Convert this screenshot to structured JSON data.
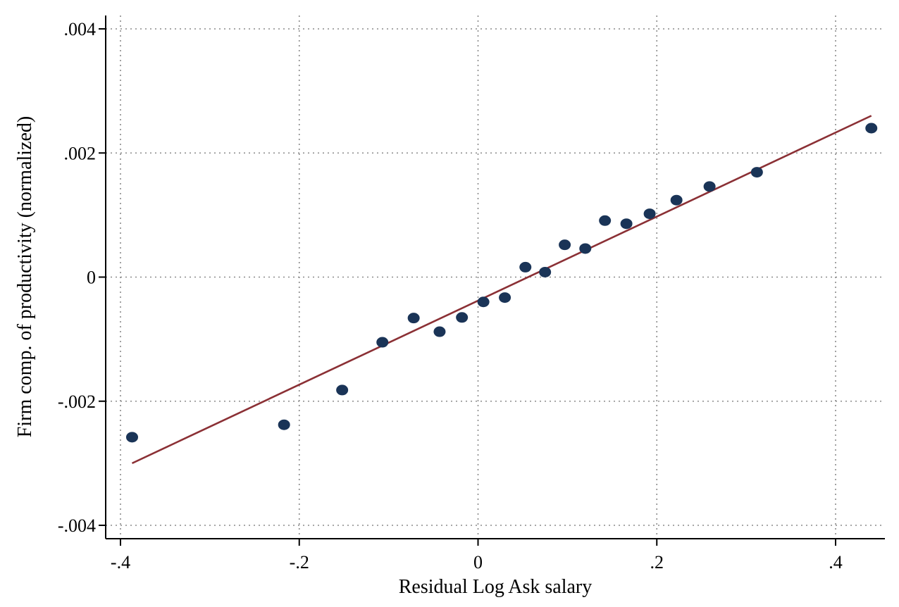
{
  "chart_data": {
    "type": "scatter",
    "title": "",
    "xlabel": "Residual Log Ask salary",
    "ylabel": "Firm comp. of productivity (normalized)",
    "xlim": [
      -0.42,
      0.455
    ],
    "ylim": [
      -0.0042,
      0.0042
    ],
    "grid": true,
    "x_ticks": [
      -0.4,
      -0.2,
      0,
      0.2,
      0.4
    ],
    "x_tick_labels": [
      "-.4",
      "-.2",
      "0",
      ".2",
      ".4"
    ],
    "y_ticks": [
      -0.004,
      -0.002,
      0,
      0.002,
      0.004
    ],
    "y_tick_labels": [
      "-.004",
      "-.002",
      "0",
      ".002",
      ".004"
    ],
    "points": {
      "x": [
        -0.387,
        -0.217,
        -0.152,
        -0.107,
        -0.072,
        -0.043,
        -0.018,
        0.006,
        0.03,
        0.053,
        0.075,
        0.097,
        0.12,
        0.142,
        0.166,
        0.192,
        0.222,
        0.259,
        0.312,
        0.44
      ],
      "y": [
        -0.00258,
        -0.00238,
        -0.00182,
        -0.00105,
        -0.00066,
        -0.00088,
        -0.00065,
        -0.0004,
        -0.00033,
        0.00016,
        8e-05,
        0.00052,
        0.00046,
        0.00091,
        0.00086,
        0.00102,
        0.00124,
        0.00146,
        0.00169,
        0.0024
      ],
      "color": "#1a3457"
    },
    "fit_line": {
      "x": [
        -0.387,
        0.44
      ],
      "y": [
        -0.003,
        0.0026
      ],
      "color": "#8b3035"
    }
  }
}
